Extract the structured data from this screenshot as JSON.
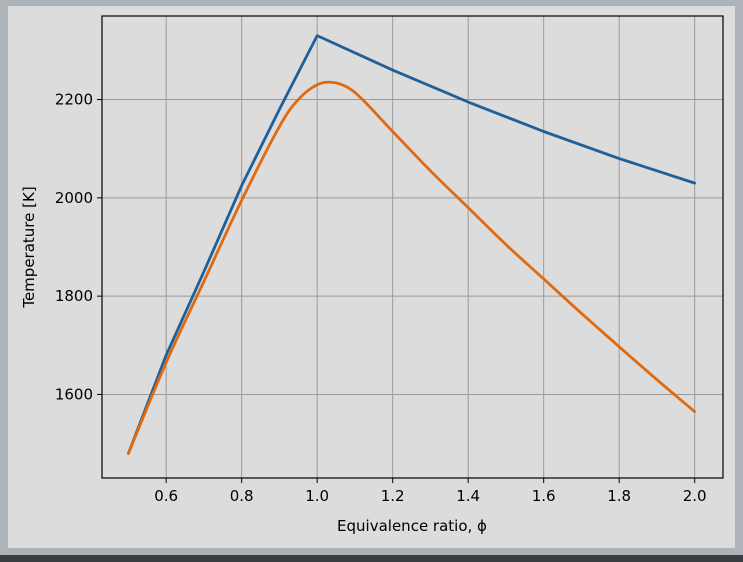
{
  "chart_data": {
    "type": "line",
    "title": "",
    "xlabel": "Equivalence ratio, ϕ",
    "ylabel": "Temperature [K]",
    "xlim": [
      0.43,
      2.075
    ],
    "ylim": [
      1430,
      2370
    ],
    "xticks": [
      0.6,
      0.8,
      1.0,
      1.2,
      1.4,
      1.6,
      1.8,
      2.0
    ],
    "xtick_labels": [
      "0.6",
      "0.8",
      "1.0",
      "1.2",
      "1.4",
      "1.6",
      "1.8",
      "2.0"
    ],
    "yticks": [
      1600,
      1800,
      2000,
      2200
    ],
    "ytick_labels": [
      "1600",
      "1800",
      "2000",
      "2200"
    ],
    "grid": true,
    "legend": "none",
    "series": [
      {
        "color": "#1f5f9a",
        "x": [
          0.5,
          0.6,
          0.7,
          0.8,
          0.9,
          1.0,
          1.2,
          1.4,
          1.6,
          1.8,
          2.0
        ],
        "y": [
          1480,
          1680,
          1850,
          2025,
          2180,
          2330,
          2260,
          2195,
          2135,
          2080,
          2030
        ]
      },
      {
        "color": "#e06a10",
        "x": [
          0.5,
          0.6,
          0.7,
          0.8,
          0.9,
          0.95,
          1.0,
          1.04,
          1.08,
          1.12,
          1.2,
          1.3,
          1.4,
          1.5,
          1.6,
          1.7,
          1.8,
          1.9,
          2.0
        ],
        "y": [
          1480,
          1665,
          1830,
          1995,
          2145,
          2200,
          2230,
          2235,
          2225,
          2200,
          2135,
          2055,
          1980,
          1905,
          1835,
          1765,
          1697,
          1630,
          1565
        ]
      }
    ]
  }
}
